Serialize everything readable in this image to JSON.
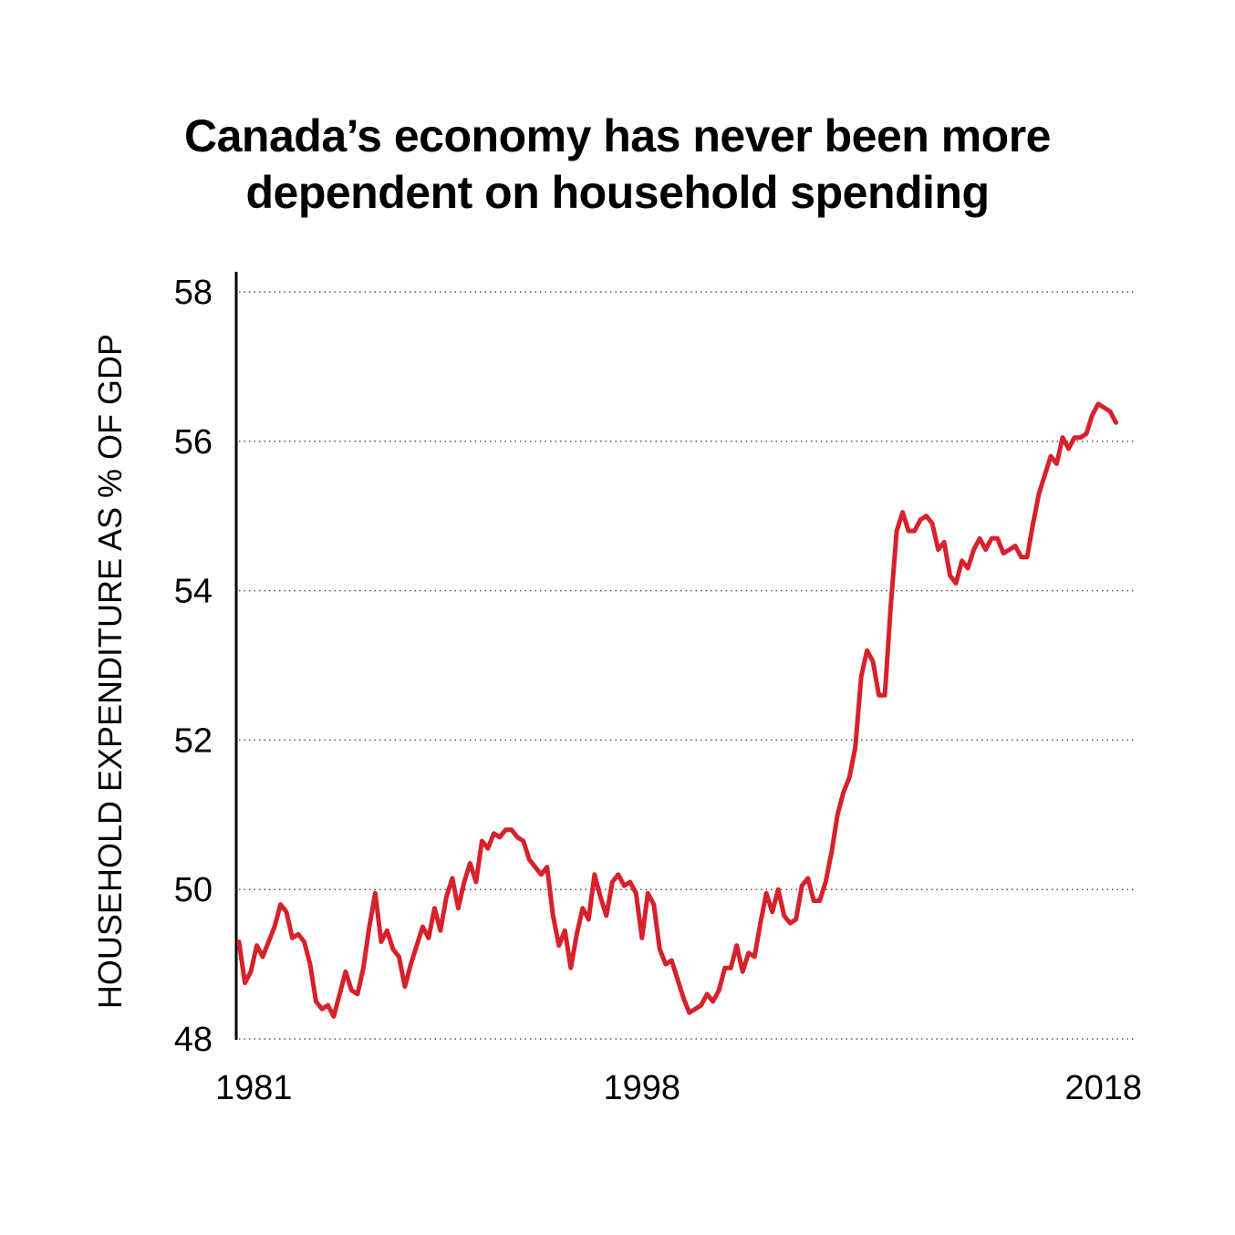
{
  "chart_data": {
    "type": "line",
    "title_lines": [
      "Canada’s economy has never been more",
      "dependent on household spending"
    ],
    "xlabel": "",
    "ylabel": "HOUSEHOLD EXPENDITURE AS % OF GDP",
    "ylim": [
      48,
      58
    ],
    "xlim": [
      1981,
      2018.75
    ],
    "y_ticks": [
      "48",
      "50",
      "52",
      "54",
      "56",
      "58"
    ],
    "x_ticks": [
      "1981",
      "1998",
      "2018"
    ],
    "grid": "horizontal dotted",
    "line_color": "#d7212b",
    "series": [
      {
        "values": [
          [
            1981.0,
            49.3
          ],
          [
            1981.25,
            48.75
          ],
          [
            1981.5,
            48.9
          ],
          [
            1981.75,
            49.25
          ],
          [
            1982.0,
            49.1
          ],
          [
            1982.25,
            49.3
          ],
          [
            1982.5,
            49.5
          ],
          [
            1982.75,
            49.8
          ],
          [
            1983.0,
            49.7
          ],
          [
            1983.25,
            49.35
          ],
          [
            1983.5,
            49.4
          ],
          [
            1983.75,
            49.3
          ],
          [
            1984.0,
            49.0
          ],
          [
            1984.25,
            48.5
          ],
          [
            1984.5,
            48.4
          ],
          [
            1984.75,
            48.45
          ],
          [
            1985.0,
            48.3
          ],
          [
            1985.25,
            48.6
          ],
          [
            1985.5,
            48.9
          ],
          [
            1985.75,
            48.65
          ],
          [
            1986.0,
            48.6
          ],
          [
            1986.25,
            48.95
          ],
          [
            1986.5,
            49.5
          ],
          [
            1986.75,
            49.95
          ],
          [
            1987.0,
            49.3
          ],
          [
            1987.25,
            49.45
          ],
          [
            1987.5,
            49.2
          ],
          [
            1987.75,
            49.1
          ],
          [
            1988.0,
            48.7
          ],
          [
            1988.25,
            49.0
          ],
          [
            1988.5,
            49.25
          ],
          [
            1988.75,
            49.5
          ],
          [
            1989.0,
            49.35
          ],
          [
            1989.25,
            49.75
          ],
          [
            1989.5,
            49.45
          ],
          [
            1989.75,
            49.9
          ],
          [
            1990.0,
            50.15
          ],
          [
            1990.25,
            49.75
          ],
          [
            1990.5,
            50.1
          ],
          [
            1990.75,
            50.35
          ],
          [
            1991.0,
            50.1
          ],
          [
            1991.25,
            50.65
          ],
          [
            1991.5,
            50.55
          ],
          [
            1991.75,
            50.75
          ],
          [
            1992.0,
            50.7
          ],
          [
            1992.25,
            50.8
          ],
          [
            1992.5,
            50.8
          ],
          [
            1992.75,
            50.7
          ],
          [
            1993.0,
            50.65
          ],
          [
            1993.25,
            50.4
          ],
          [
            1993.5,
            50.3
          ],
          [
            1993.75,
            50.2
          ],
          [
            1994.0,
            50.3
          ],
          [
            1994.25,
            49.65
          ],
          [
            1994.5,
            49.25
          ],
          [
            1994.75,
            49.45
          ],
          [
            1995.0,
            48.95
          ],
          [
            1995.25,
            49.4
          ],
          [
            1995.5,
            49.75
          ],
          [
            1995.75,
            49.6
          ],
          [
            1996.0,
            50.2
          ],
          [
            1996.25,
            49.9
          ],
          [
            1996.5,
            49.65
          ],
          [
            1996.75,
            50.1
          ],
          [
            1997.0,
            50.2
          ],
          [
            1997.25,
            50.05
          ],
          [
            1997.5,
            50.1
          ],
          [
            1997.75,
            49.95
          ],
          [
            1998.0,
            49.35
          ],
          [
            1998.25,
            49.95
          ],
          [
            1998.5,
            49.8
          ],
          [
            1998.75,
            49.2
          ],
          [
            1999.0,
            49.0
          ],
          [
            1999.25,
            49.05
          ],
          [
            1999.5,
            48.8
          ],
          [
            1999.75,
            48.55
          ],
          [
            2000.0,
            48.35
          ],
          [
            2000.25,
            48.4
          ],
          [
            2000.5,
            48.45
          ],
          [
            2000.75,
            48.6
          ],
          [
            2001.0,
            48.5
          ],
          [
            2001.25,
            48.65
          ],
          [
            2001.5,
            48.95
          ],
          [
            2001.75,
            48.95
          ],
          [
            2002.0,
            49.25
          ],
          [
            2002.25,
            48.9
          ],
          [
            2002.5,
            49.15
          ],
          [
            2002.75,
            49.1
          ],
          [
            2003.0,
            49.55
          ],
          [
            2003.25,
            49.95
          ],
          [
            2003.5,
            49.7
          ],
          [
            2003.75,
            50.0
          ],
          [
            2004.0,
            49.65
          ],
          [
            2004.25,
            49.55
          ],
          [
            2004.5,
            49.6
          ],
          [
            2004.75,
            50.05
          ],
          [
            2005.0,
            50.15
          ],
          [
            2005.25,
            49.85
          ],
          [
            2005.5,
            49.85
          ],
          [
            2005.75,
            50.1
          ],
          [
            2006.0,
            50.5
          ],
          [
            2006.25,
            51.0
          ],
          [
            2006.5,
            51.3
          ],
          [
            2006.75,
            51.5
          ],
          [
            2007.0,
            51.9
          ],
          [
            2007.25,
            52.85
          ],
          [
            2007.5,
            53.2
          ],
          [
            2007.75,
            53.05
          ],
          [
            2008.0,
            52.6
          ],
          [
            2008.25,
            52.6
          ],
          [
            2008.5,
            53.8
          ],
          [
            2008.75,
            54.8
          ],
          [
            2009.0,
            55.05
          ],
          [
            2009.25,
            54.8
          ],
          [
            2009.5,
            54.8
          ],
          [
            2009.75,
            54.95
          ],
          [
            2010.0,
            55.0
          ],
          [
            2010.25,
            54.9
          ],
          [
            2010.5,
            54.55
          ],
          [
            2010.75,
            54.65
          ],
          [
            2011.0,
            54.2
          ],
          [
            2011.25,
            54.1
          ],
          [
            2011.5,
            54.4
          ],
          [
            2011.75,
            54.3
          ],
          [
            2012.0,
            54.55
          ],
          [
            2012.25,
            54.7
          ],
          [
            2012.5,
            54.55
          ],
          [
            2012.75,
            54.7
          ],
          [
            2013.0,
            54.7
          ],
          [
            2013.25,
            54.5
          ],
          [
            2013.5,
            54.55
          ],
          [
            2013.75,
            54.6
          ],
          [
            2014.0,
            54.45
          ],
          [
            2014.25,
            54.45
          ],
          [
            2014.5,
            54.9
          ],
          [
            2014.75,
            55.3
          ],
          [
            2015.0,
            55.55
          ],
          [
            2015.25,
            55.8
          ],
          [
            2015.5,
            55.7
          ],
          [
            2015.75,
            56.05
          ],
          [
            2016.0,
            55.9
          ],
          [
            2016.25,
            56.05
          ],
          [
            2016.5,
            56.05
          ],
          [
            2016.75,
            56.1
          ],
          [
            2017.0,
            56.35
          ],
          [
            2017.25,
            56.5
          ],
          [
            2017.5,
            56.45
          ],
          [
            2017.75,
            56.4
          ],
          [
            2018.0,
            56.25
          ]
        ]
      }
    ]
  }
}
